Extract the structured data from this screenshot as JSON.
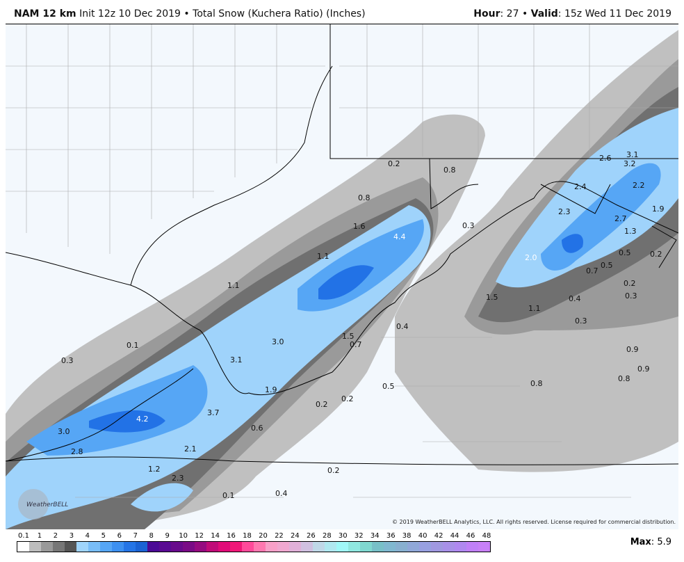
{
  "header": {
    "model": "NAM 12 km",
    "init": "Init 12z 10 Dec 2019",
    "separator": "•",
    "product": "Total Snow (Kuchera Ratio) (Inches)",
    "hour_label": "Hour",
    "hour": "27",
    "valid_label": "Valid",
    "valid": "15z Wed 11 Dec 2019"
  },
  "colors": {
    "gray1": "#c0c0c0",
    "gray2": "#9a9a9a",
    "gray3": "#707070",
    "gray4": "#505050",
    "blue1": "#9fd3fb",
    "blue2": "#78bdf8",
    "blue3": "#56a6f5",
    "blue4": "#3b8ff0",
    "blue5": "#2272e6",
    "background": "#f3f8fd"
  },
  "map_labels": [
    "0.2",
    "0.8",
    "0.8",
    "1.6",
    "4.4",
    "0.3",
    "1.1",
    "1.1",
    "0.3",
    "0.1",
    "3.0",
    "1.5",
    "0.7",
    "0.4",
    "3.1",
    "1.9",
    "0.2",
    "0.2",
    "0.5",
    "4.2",
    "3.7",
    "3.0",
    "2.8",
    "0.6",
    "2.1",
    "1.2",
    "2.3",
    "0.2",
    "0.1",
    "0.4",
    "3.1",
    "2.6",
    "3.2",
    "2.4",
    "2.2",
    "2.3",
    "2.7",
    "1.9",
    "1.3",
    "2.0",
    "0.5",
    "0.2",
    "0.7",
    "0.5",
    "0.2",
    "0.3",
    "1.5",
    "1.1",
    "0.4",
    "0.3",
    "0.9",
    "0.9",
    "0.8",
    "0.8"
  ],
  "logo": "WeatherBELL",
  "copyright": "© 2019 WeatherBELL Analytics, LLC. All rights reserved. License required for commercial distribution.",
  "colorbar": {
    "ticks": [
      "0.1",
      "1",
      "2",
      "3",
      "4",
      "5",
      "6",
      "7",
      "8",
      "9",
      "10",
      "12",
      "14",
      "16",
      "18",
      "20",
      "22",
      "24",
      "26",
      "28",
      "30",
      "32",
      "34",
      "36",
      "38",
      "40",
      "42",
      "44",
      "46",
      "48"
    ],
    "swatches": [
      "#ffffff",
      "#bdbdbd",
      "#999999",
      "#777777",
      "#555555",
      "#9fd4fb",
      "#78bdf8",
      "#56a6f5",
      "#3d90f0",
      "#2575e6",
      "#1b63d4",
      "#4b0a96",
      "#5a0a93",
      "#680a8c",
      "#7a0a86",
      "#960a80",
      "#c00a78",
      "#e00a78",
      "#f01878",
      "#ff4a9a",
      "#ff78b0",
      "#f8a0c8",
      "#f0a8d0",
      "#e0b0d8",
      "#d0c0e0",
      "#c0d8e8",
      "#b0e8f0",
      "#a0f8f8",
      "#90e8e0",
      "#80d8d0",
      "#78c0c8",
      "#80b8d0",
      "#88b0d0",
      "#90a8d8",
      "#98a0e0",
      "#a098e0",
      "#a890e8",
      "#b088f0",
      "#c080f8",
      "#c880f8"
    ]
  },
  "max_label": "Max",
  "max_value": "5.9"
}
